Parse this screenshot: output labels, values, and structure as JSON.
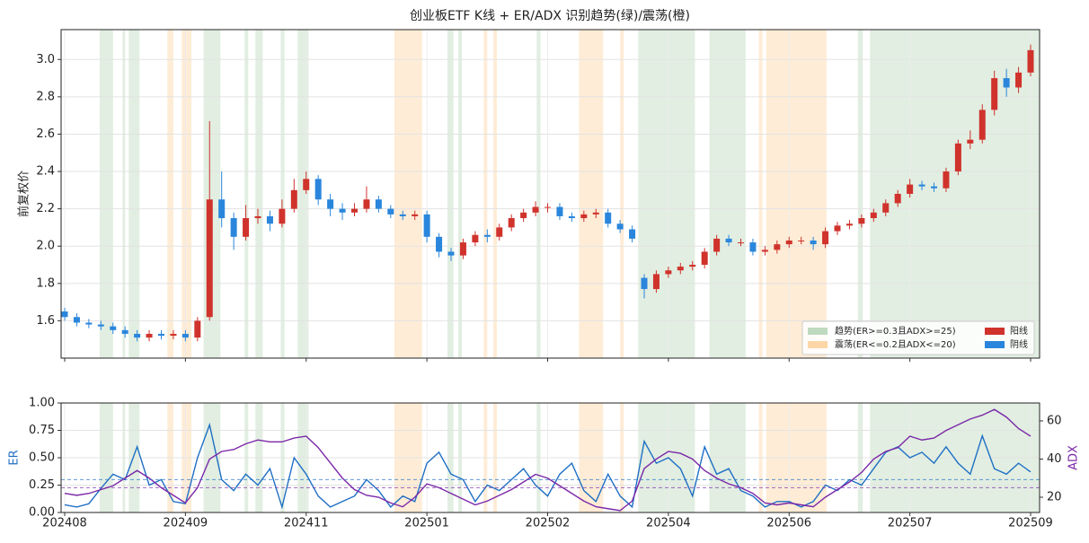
{
  "chart_data": [
    {
      "type": "candlestick",
      "title": "创业板ETF K线 + ER/ADX 识别趋势(绿)/震荡(橙)",
      "y_label": "前复权价",
      "categories": [
        "202408",
        null,
        null,
        null,
        null,
        null,
        null,
        null,
        null,
        null,
        "202409",
        null,
        null,
        null,
        null,
        null,
        null,
        null,
        null,
        null,
        "202411",
        null,
        null,
        null,
        null,
        null,
        null,
        null,
        null,
        null,
        "202501",
        null,
        null,
        null,
        null,
        null,
        null,
        null,
        null,
        null,
        "202502",
        null,
        null,
        null,
        null,
        null,
        null,
        null,
        null,
        null,
        "202504",
        null,
        null,
        null,
        null,
        null,
        null,
        null,
        null,
        null,
        "202506",
        null,
        null,
        null,
        null,
        null,
        null,
        null,
        null,
        null,
        "202507",
        null,
        null,
        null,
        null,
        null,
        null,
        null,
        null,
        null,
        "202509"
      ],
      "open": [
        1.65,
        1.62,
        1.59,
        1.58,
        1.57,
        1.55,
        1.53,
        1.51,
        1.53,
        1.52,
        1.53,
        1.51,
        1.62,
        2.25,
        2.15,
        2.05,
        2.15,
        2.16,
        2.12,
        2.2,
        2.3,
        2.36,
        2.25,
        2.2,
        2.18,
        2.2,
        2.25,
        2.2,
        2.17,
        2.16,
        2.17,
        2.05,
        1.97,
        1.95,
        2.02,
        2.06,
        2.05,
        2.1,
        2.15,
        2.18,
        2.21,
        2.21,
        2.16,
        2.15,
        2.17,
        2.18,
        2.12,
        2.09,
        1.83,
        1.77,
        1.85,
        1.87,
        1.89,
        1.9,
        1.97,
        2.04,
        2.02,
        2.02,
        1.97,
        1.98,
        2.01,
        2.03,
        2.03,
        2.01,
        2.08,
        2.11,
        2.12,
        2.15,
        2.18,
        2.23,
        2.28,
        2.33,
        2.32,
        2.31,
        2.4,
        2.55,
        2.57,
        2.73,
        2.9,
        2.85,
        2.93
      ],
      "high": [
        1.67,
        1.64,
        1.61,
        1.6,
        1.59,
        1.57,
        1.55,
        1.55,
        1.55,
        1.55,
        1.55,
        1.62,
        2.67,
        2.4,
        2.18,
        2.22,
        2.2,
        2.19,
        2.25,
        2.36,
        2.4,
        2.38,
        2.28,
        2.23,
        2.23,
        2.32,
        2.27,
        2.22,
        2.19,
        2.19,
        2.19,
        2.07,
        1.99,
        2.04,
        2.08,
        2.09,
        2.12,
        2.17,
        2.2,
        2.24,
        2.23,
        2.23,
        2.18,
        2.19,
        2.2,
        2.2,
        2.14,
        2.11,
        1.85,
        1.87,
        1.89,
        1.91,
        1.92,
        1.99,
        2.06,
        2.06,
        2.04,
        2.04,
        2.0,
        2.03,
        2.05,
        2.05,
        2.05,
        2.1,
        2.13,
        2.14,
        2.17,
        2.2,
        2.25,
        2.3,
        2.36,
        2.35,
        2.34,
        2.42,
        2.57,
        2.62,
        2.76,
        2.94,
        2.95,
        2.96,
        3.08
      ],
      "low": [
        1.6,
        1.57,
        1.56,
        1.55,
        1.53,
        1.51,
        1.49,
        1.49,
        1.5,
        1.5,
        1.49,
        1.49,
        1.6,
        2.1,
        1.98,
        2.03,
        2.12,
        2.08,
        2.1,
        2.18,
        2.28,
        2.22,
        2.16,
        2.14,
        2.16,
        2.18,
        2.18,
        2.15,
        2.14,
        2.14,
        2.02,
        1.94,
        1.92,
        1.93,
        2.0,
        2.02,
        2.03,
        2.08,
        2.13,
        2.16,
        2.18,
        2.14,
        2.13,
        2.13,
        2.15,
        2.1,
        2.07,
        2.02,
        1.72,
        1.75,
        1.83,
        1.85,
        1.87,
        1.88,
        1.95,
        2.0,
        2.0,
        1.95,
        1.95,
        1.96,
        1.99,
        2.01,
        1.98,
        1.99,
        2.06,
        2.09,
        2.1,
        2.13,
        2.16,
        2.21,
        2.26,
        2.3,
        2.29,
        2.29,
        2.38,
        2.52,
        2.55,
        2.7,
        2.8,
        2.82,
        2.91
      ],
      "close": [
        1.62,
        1.59,
        1.58,
        1.57,
        1.55,
        1.53,
        1.51,
        1.53,
        1.52,
        1.53,
        1.51,
        1.6,
        2.25,
        2.15,
        2.05,
        2.15,
        2.16,
        2.12,
        2.2,
        2.3,
        2.36,
        2.25,
        2.2,
        2.18,
        2.2,
        2.25,
        2.2,
        2.17,
        2.16,
        2.17,
        2.05,
        1.97,
        1.95,
        2.02,
        2.06,
        2.05,
        2.1,
        2.15,
        2.18,
        2.21,
        2.21,
        2.16,
        2.15,
        2.17,
        2.18,
        2.12,
        2.09,
        2.04,
        1.77,
        1.85,
        1.87,
        1.89,
        1.9,
        1.97,
        2.04,
        2.02,
        2.02,
        1.97,
        1.98,
        2.01,
        2.03,
        2.03,
        2.01,
        2.08,
        2.11,
        2.12,
        2.15,
        2.18,
        2.23,
        2.28,
        2.33,
        2.32,
        2.31,
        2.4,
        2.55,
        2.57,
        2.73,
        2.9,
        2.85,
        2.93,
        3.05
      ],
      "candle_colors": [
        {
          "name": "阳线",
          "color": "#d0322c"
        },
        {
          "name": "阴线",
          "color": "#2a86dc"
        }
      ],
      "regime_legend": [
        {
          "name": "趋势(ER>=0.3且ADX>=25)",
          "color": "#a9cfa9",
          "spans": [
            [
              2.9,
              4.0
            ],
            [
              4.8,
              5.0
            ],
            [
              5.3,
              6.2
            ],
            [
              11.5,
              12.9
            ],
            [
              14.9,
              15.2
            ],
            [
              15.8,
              16.4
            ],
            [
              17.9,
              18.2
            ],
            [
              19.3,
              20.2
            ],
            [
              31.7,
              32.2
            ],
            [
              32.6,
              32.9
            ],
            [
              39.1,
              39.4
            ],
            [
              47.5,
              52.2
            ],
            [
              53.4,
              56.4
            ],
            [
              65.7,
              66.1
            ],
            [
              66.7,
              80.7
            ]
          ]
        },
        {
          "name": "震荡(ER<=0.2且ADX<=20)",
          "color": "#fbc98a",
          "spans": [
            [
              8.5,
              9.0
            ],
            [
              9.7,
              10.5
            ],
            [
              27.3,
              29.6
            ],
            [
              34.7,
              35.0
            ],
            [
              35.5,
              35.8
            ],
            [
              42.6,
              44.6
            ],
            [
              46.0,
              46.3
            ],
            [
              57.5,
              57.8
            ],
            [
              58.1,
              63.1
            ]
          ]
        }
      ],
      "ylim": [
        1.4,
        3.16
      ],
      "yticks": [
        1.6,
        1.8,
        {
          "value": 2,
          "label": "2.0"
        },
        2.2,
        2.4,
        2.6,
        2.8,
        {
          "value": 3,
          "label": "3.0"
        }
      ],
      "grid": true
    },
    {
      "type": "line",
      "y_label": "ER",
      "y2_label": "ADX",
      "series": [
        {
          "name": "ER",
          "color": "#1f6fc5",
          "values": [
            0.07,
            0.05,
            0.08,
            0.22,
            0.35,
            0.3,
            0.6,
            0.25,
            0.3,
            0.1,
            0.08,
            0.5,
            0.8,
            0.3,
            0.2,
            0.35,
            0.25,
            0.4,
            0.05,
            0.5,
            0.35,
            0.15,
            0.05,
            0.1,
            0.15,
            0.3,
            0.2,
            0.05,
            0.15,
            0.1,
            0.45,
            0.55,
            0.35,
            0.3,
            0.1,
            0.25,
            0.2,
            0.3,
            0.4,
            0.25,
            0.15,
            0.35,
            0.45,
            0.2,
            0.1,
            0.35,
            0.15,
            0.05,
            0.65,
            0.45,
            0.5,
            0.4,
            0.15,
            0.6,
            0.35,
            0.4,
            0.2,
            0.15,
            0.05,
            0.1,
            0.1,
            0.05,
            0.1,
            0.25,
            0.2,
            0.3,
            0.25,
            0.4,
            0.55,
            0.6,
            0.5,
            0.55,
            0.45,
            0.6,
            0.45,
            0.35,
            0.7,
            0.4,
            0.35,
            0.45,
            0.37
          ]
        },
        {
          "name": "ADX",
          "color": "#7b28a8",
          "axis": "y2",
          "values": [
            22,
            21,
            22,
            24,
            26,
            30,
            34,
            30,
            25,
            21,
            17,
            25,
            40,
            44,
            45,
            48,
            50,
            49,
            49,
            51,
            52,
            46,
            38,
            30,
            24,
            21,
            20,
            17,
            15,
            20,
            27,
            25,
            22,
            19,
            16,
            18,
            21,
            24,
            28,
            32,
            30,
            26,
            22,
            18,
            15,
            14,
            13,
            18,
            35,
            40,
            44,
            43,
            40,
            34,
            30,
            27,
            25,
            22,
            17,
            16,
            17,
            16,
            15,
            20,
            24,
            28,
            33,
            40,
            44,
            46,
            52,
            50,
            51,
            55,
            58,
            61,
            63,
            66,
            62,
            56,
            52
          ]
        }
      ],
      "er_threshold": 0.3,
      "adx_threshold": 25,
      "ylim": [
        0,
        1
      ],
      "yticks": [
        {
          "value": 0,
          "label": "0.00"
        },
        {
          "value": 0.25,
          "label": "0.25"
        },
        {
          "value": 0.5,
          "label": "0.50"
        },
        {
          "value": 0.75,
          "label": "0.75"
        },
        {
          "value": 1,
          "label": "1.00"
        }
      ],
      "y2lim": [
        12,
        69.4
      ],
      "y2ticks": [
        20,
        40,
        60
      ],
      "grid": true
    }
  ]
}
